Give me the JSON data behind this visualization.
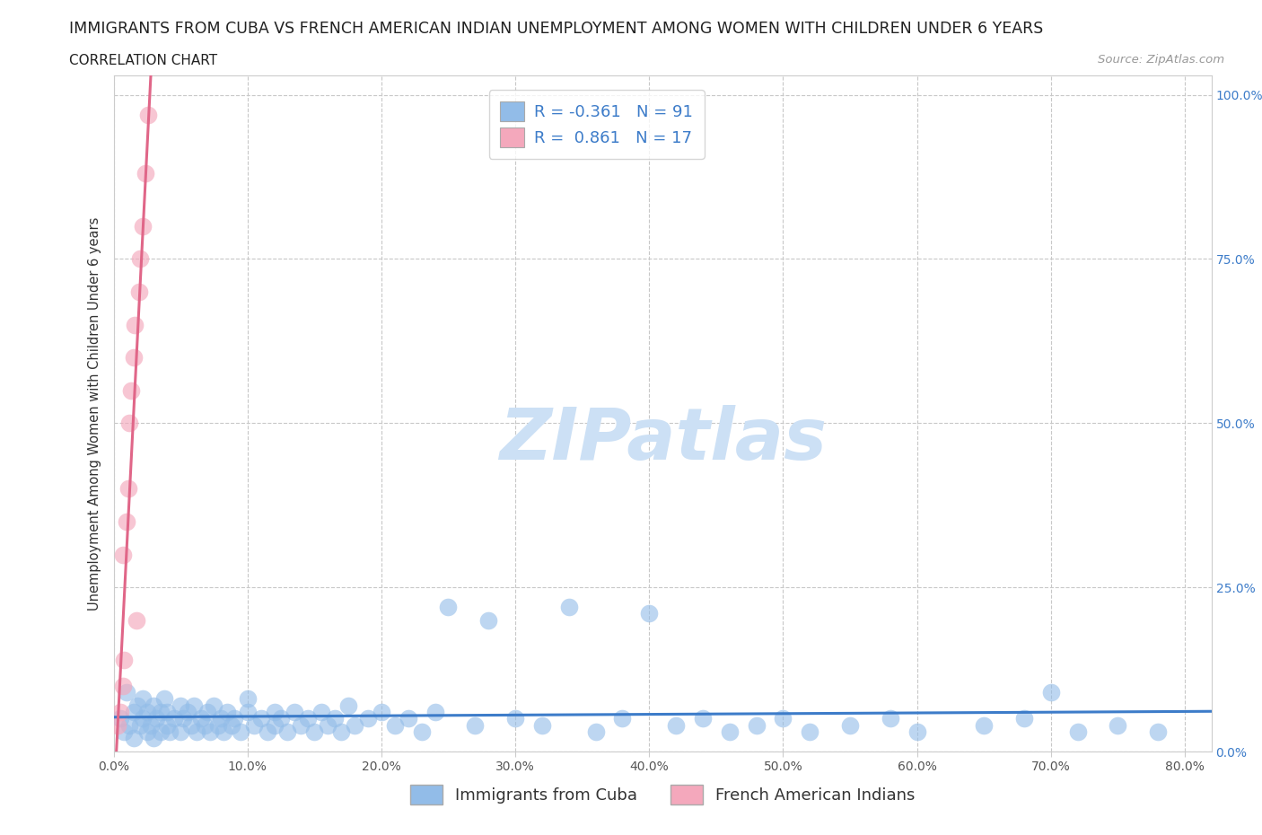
{
  "title": "IMMIGRANTS FROM CUBA VS FRENCH AMERICAN INDIAN UNEMPLOYMENT AMONG WOMEN WITH CHILDREN UNDER 6 YEARS",
  "subtitle": "CORRELATION CHART",
  "source": "Source: ZipAtlas.com",
  "ylabel": "Unemployment Among Women with Children Under 6 years",
  "xlim": [
    0.0,
    0.82
  ],
  "ylim": [
    0.0,
    1.03
  ],
  "xticks": [
    0.0,
    0.1,
    0.2,
    0.3,
    0.4,
    0.5,
    0.6,
    0.7,
    0.8
  ],
  "xticklabels": [
    "0.0%",
    "10.0%",
    "20.0%",
    "30.0%",
    "40.0%",
    "50.0%",
    "60.0%",
    "70.0%",
    "80.0%"
  ],
  "yticks_right": [
    0.0,
    0.25,
    0.5,
    0.75,
    1.0
  ],
  "yticklabels_right": [
    "0.0%",
    "25.0%",
    "50.0%",
    "75.0%",
    "100.0%"
  ],
  "blue_color": "#92bce8",
  "pink_color": "#f4a8bc",
  "blue_line_color": "#3d7cc9",
  "pink_line_color": "#e06688",
  "R_blue": -0.361,
  "N_blue": 91,
  "R_pink": 0.861,
  "N_pink": 17,
  "legend_label_blue": "Immigrants from Cuba",
  "legend_label_pink": "French American Indians",
  "watermark": "ZIPatlas",
  "grid_color": "#c8c8c8",
  "background_color": "#ffffff",
  "title_fontsize": 12.5,
  "subtitle_fontsize": 11,
  "axis_label_fontsize": 10.5,
  "tick_fontsize": 10,
  "legend_fontsize": 13,
  "stat_legend_fontsize": 13,
  "watermark_fontsize": 58,
  "watermark_color": "#cce0f5",
  "right_tick_color": "#3d7cc9",
  "stat_text_color": "#3d7cc9",
  "blue_scatter_x": [
    0.005,
    0.008,
    0.01,
    0.012,
    0.015,
    0.015,
    0.018,
    0.02,
    0.022,
    0.022,
    0.025,
    0.025,
    0.028,
    0.03,
    0.03,
    0.032,
    0.035,
    0.035,
    0.038,
    0.04,
    0.04,
    0.042,
    0.045,
    0.05,
    0.05,
    0.052,
    0.055,
    0.058,
    0.06,
    0.062,
    0.065,
    0.068,
    0.07,
    0.072,
    0.075,
    0.078,
    0.08,
    0.082,
    0.085,
    0.088,
    0.09,
    0.095,
    0.1,
    0.1,
    0.105,
    0.11,
    0.115,
    0.12,
    0.12,
    0.125,
    0.13,
    0.135,
    0.14,
    0.145,
    0.15,
    0.155,
    0.16,
    0.165,
    0.17,
    0.175,
    0.18,
    0.19,
    0.2,
    0.21,
    0.22,
    0.23,
    0.24,
    0.25,
    0.27,
    0.28,
    0.3,
    0.32,
    0.34,
    0.36,
    0.38,
    0.4,
    0.42,
    0.44,
    0.46,
    0.48,
    0.5,
    0.52,
    0.55,
    0.58,
    0.6,
    0.65,
    0.68,
    0.7,
    0.72,
    0.75,
    0.78
  ],
  "blue_scatter_y": [
    0.05,
    0.03,
    0.09,
    0.04,
    0.06,
    0.02,
    0.07,
    0.04,
    0.05,
    0.08,
    0.03,
    0.06,
    0.04,
    0.07,
    0.02,
    0.05,
    0.06,
    0.03,
    0.08,
    0.04,
    0.06,
    0.03,
    0.05,
    0.07,
    0.03,
    0.05,
    0.06,
    0.04,
    0.07,
    0.03,
    0.05,
    0.04,
    0.06,
    0.03,
    0.07,
    0.04,
    0.05,
    0.03,
    0.06,
    0.04,
    0.05,
    0.03,
    0.06,
    0.08,
    0.04,
    0.05,
    0.03,
    0.06,
    0.04,
    0.05,
    0.03,
    0.06,
    0.04,
    0.05,
    0.03,
    0.06,
    0.04,
    0.05,
    0.03,
    0.07,
    0.04,
    0.05,
    0.06,
    0.04,
    0.05,
    0.03,
    0.06,
    0.22,
    0.04,
    0.2,
    0.05,
    0.04,
    0.22,
    0.03,
    0.05,
    0.21,
    0.04,
    0.05,
    0.03,
    0.04,
    0.05,
    0.03,
    0.04,
    0.05,
    0.03,
    0.04,
    0.05,
    0.09,
    0.03,
    0.04,
    0.03
  ],
  "pink_scatter_x": [
    0.003,
    0.005,
    0.007,
    0.007,
    0.008,
    0.01,
    0.011,
    0.012,
    0.013,
    0.015,
    0.016,
    0.017,
    0.019,
    0.02,
    0.022,
    0.024,
    0.026
  ],
  "pink_scatter_y": [
    0.04,
    0.06,
    0.1,
    0.3,
    0.14,
    0.35,
    0.4,
    0.5,
    0.55,
    0.6,
    0.65,
    0.2,
    0.7,
    0.75,
    0.8,
    0.88,
    0.97
  ]
}
